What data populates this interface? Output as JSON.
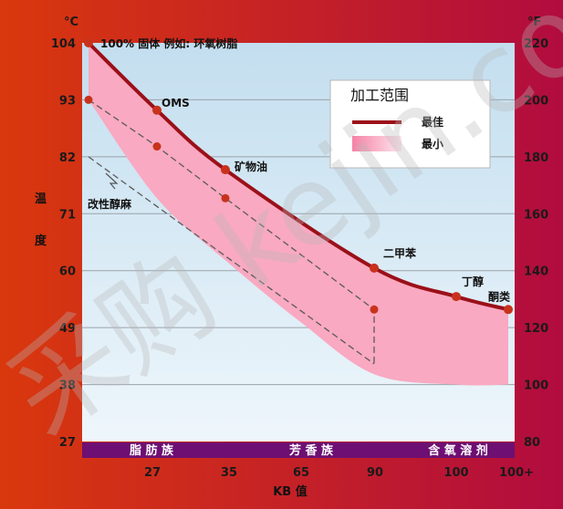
{
  "chart_data": {
    "type": "area",
    "y_left_unit": "°C",
    "y_right_unit": "°F",
    "y_left_ticks": [
      "104",
      "93",
      "82",
      "71",
      "60",
      "49",
      "38",
      "27"
    ],
    "y_right_ticks": [
      "220",
      "200",
      "180",
      "160",
      "140",
      "120",
      "100",
      "80"
    ],
    "x_ticks": [
      "27",
      "35",
      "65",
      "90",
      "100",
      "100+"
    ],
    "xlabel": "KB 值",
    "ylabel": [
      "温",
      "度"
    ],
    "ylim_c": [
      27,
      104
    ],
    "series": [
      {
        "name": "最佳",
        "color": "#9b1019",
        "kb": [
          0,
          27,
          35,
          90,
          100,
          106
        ],
        "temp_c": [
          104,
          91,
          79.5,
          60.5,
          55,
          52.5
        ]
      },
      {
        "name": "最小",
        "color": "#f9a9c1",
        "kb": [
          0,
          27,
          35,
          65,
          90,
          100,
          106
        ],
        "temp_c": [
          93,
          74,
          62,
          50,
          40,
          38,
          38
        ]
      }
    ],
    "dashed_path": {
      "kb": [
        0,
        27,
        35,
        90,
        90
      ],
      "temp_c": [
        93,
        84,
        74,
        52.5,
        42
      ]
    },
    "dashed_lower": {
      "kb": [
        0,
        90
      ],
      "temp_c": [
        82,
        42
      ]
    },
    "points": [
      {
        "label": "100% 固体 例如: 环氧树脂",
        "kb": 0,
        "temp_c": 104
      },
      {
        "label": "OMS",
        "kb": 27,
        "temp_c": 91
      },
      {
        "label": "矿物油",
        "kb": 35,
        "temp_c": 79.5
      },
      {
        "label": "二甲苯",
        "kb": 90,
        "temp_c": 60.5
      },
      {
        "label": "丁醇",
        "kb": 100,
        "temp_c": 55
      },
      {
        "label": "酮类",
        "kb": 106,
        "temp_c": 52.5
      }
    ],
    "extra_points": [
      {
        "kb": 0,
        "temp_c": 93
      },
      {
        "kb": 27,
        "temp_c": 84
      },
      {
        "kb": 35,
        "temp_c": 74
      },
      {
        "kb": 90,
        "temp_c": 52.5
      }
    ],
    "annotation": "改性醇麻",
    "legend": {
      "title": "加工范围",
      "position": "top-right"
    },
    "bands": [
      "脂 肪 族",
      "芳 香 族",
      "含 氧 溶 剂"
    ],
    "grid": true,
    "colors": {
      "frame_left": "#d9380d",
      "frame_right": "#b10c3f",
      "best": "#9b1019",
      "min": "#f9a9c1",
      "band": "#6e0f73"
    }
  },
  "watermark": "采购 kejin.com"
}
